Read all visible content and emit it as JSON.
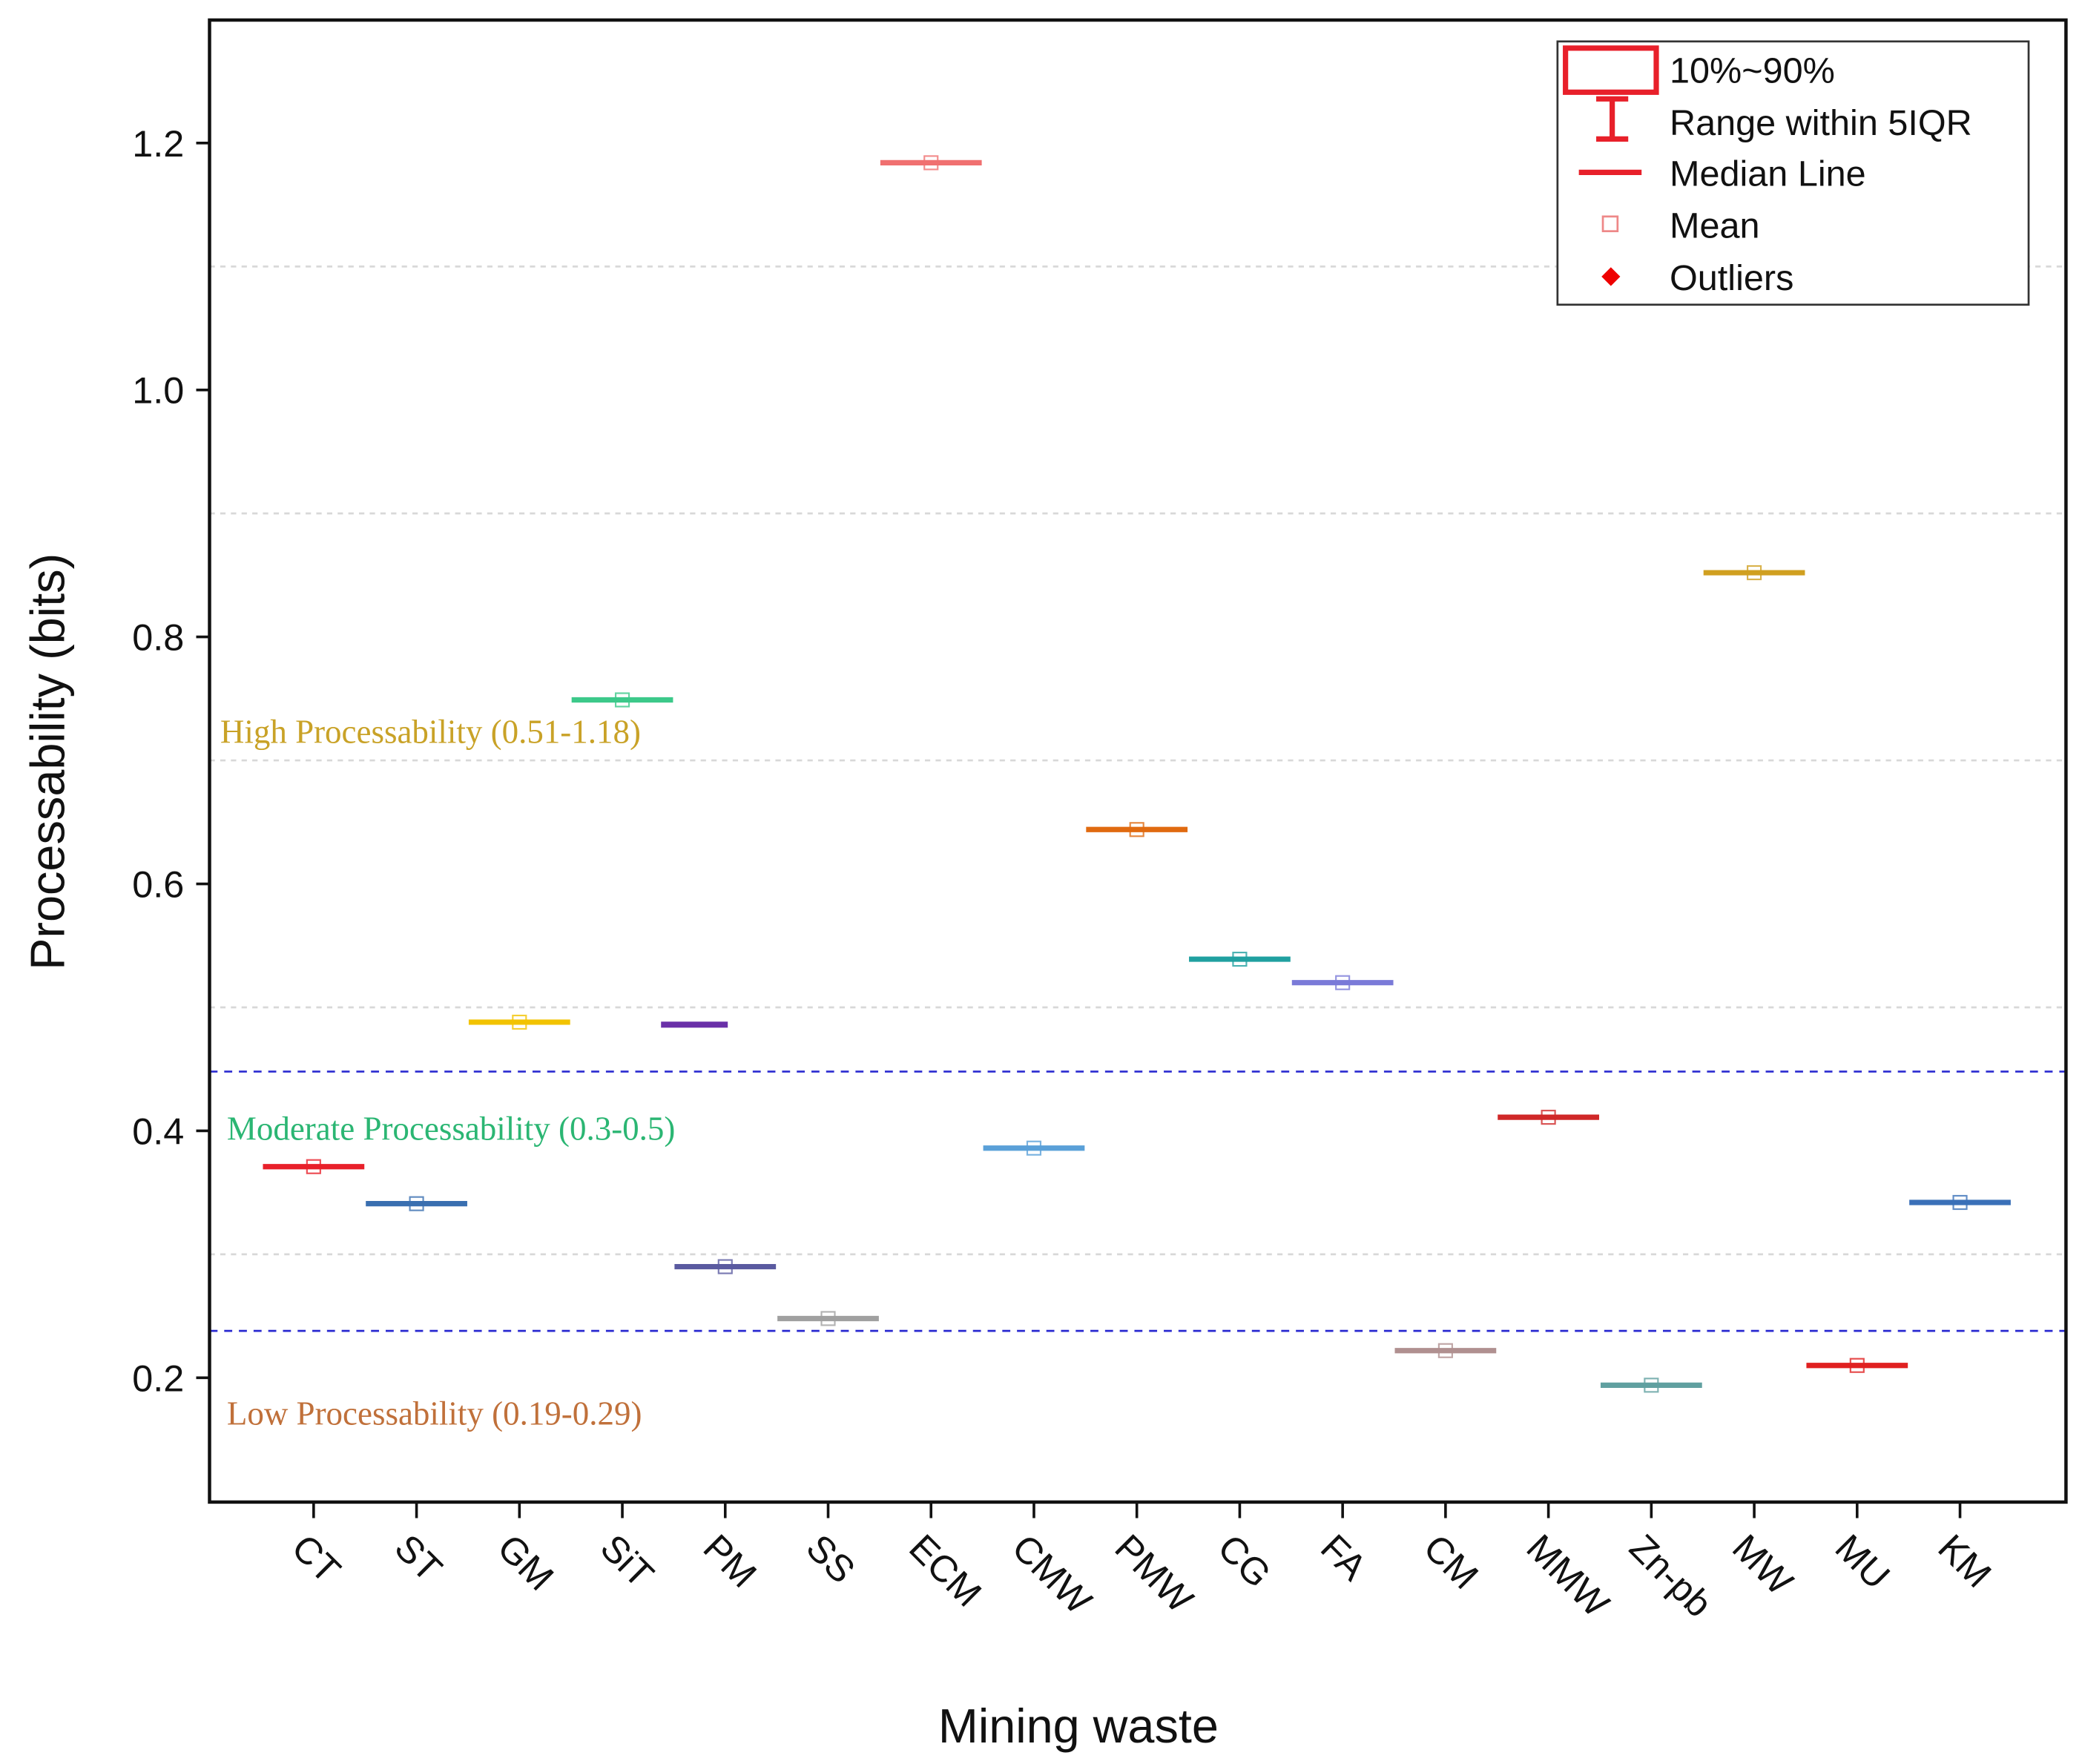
{
  "chart_data": {
    "type": "box",
    "xlabel": "Mining waste",
    "ylabel": "Processability (bits)",
    "ylim": [
      0.1,
      1.3
    ],
    "yticks": [
      "0.2",
      "0.4",
      "0.6",
      "0.8",
      "1.0",
      "1.2"
    ],
    "ytick_values": [
      0.2,
      0.4,
      0.6,
      0.8,
      1.0,
      1.2
    ],
    "grid_values": [
      0.3,
      0.5,
      0.7,
      0.9,
      1.1
    ],
    "threshold_lines": [
      0.448,
      0.238
    ],
    "categories": [
      "CT",
      "ST",
      "GM",
      "SiT",
      "PM",
      "SS",
      "ECM",
      "CMW",
      "PMW",
      "CG",
      "FA",
      "CM",
      "MMW",
      "Zn-pb",
      "MW",
      "MU",
      "KM"
    ],
    "values": [
      0.371,
      0.341,
      0.488,
      0.749,
      0.29,
      0.248,
      1.184,
      0.386,
      0.644,
      0.539,
      0.52,
      0.222,
      0.411,
      0.194,
      0.852,
      0.21,
      0.342
    ],
    "colors": [
      "#e8202a",
      "#3a6fb0",
      "#f2c300",
      "#3cc98a",
      "#5a5aa0",
      "#a0a0a0",
      "#f07070",
      "#5aa0d8",
      "#e06a10",
      "#20a0a0",
      "#7a7ad8",
      "#b09090",
      "#d02828",
      "#60a0a0",
      "#d0a020",
      "#e02020",
      "#3a70b8"
    ],
    "extra_marks": [
      {
        "after_category": "SiT",
        "value": 0.486,
        "color": "#6a30a8"
      }
    ],
    "annotations": [
      {
        "text": "High  Processability  (0.51-1.18)",
        "color": "#c9a227"
      },
      {
        "text": "Moderate Processability  (0.3-0.5)",
        "color": "#2bb673"
      },
      {
        "text": "Low Processability   (0.19-0.29)",
        "color": "#c0703a"
      }
    ],
    "legend": {
      "position": "top-right",
      "items": [
        "10%~90%",
        "Range within 5IQR",
        "Median Line",
        "Mean",
        "Outliers"
      ]
    }
  }
}
